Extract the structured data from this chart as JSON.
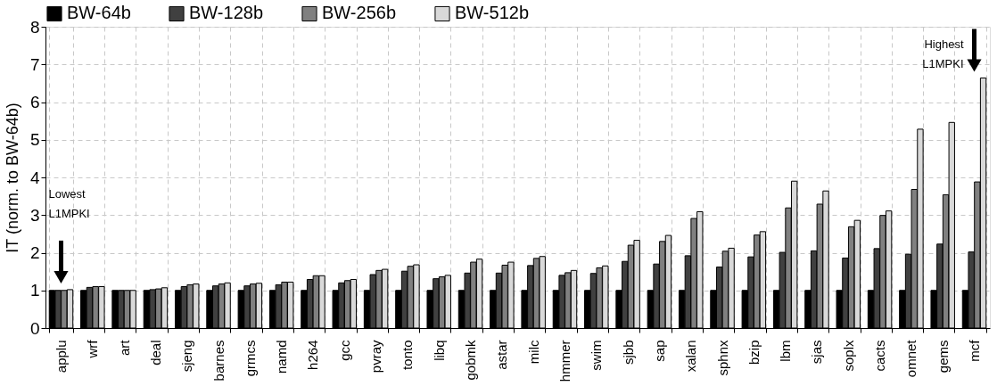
{
  "chart_data": {
    "type": "bar",
    "ylabel": "IT  (norm. to BW-64b)",
    "categories": [
      "applu",
      "wrf",
      "art",
      "deal",
      "sjeng",
      "barnes",
      "grmcs",
      "namd",
      "h264",
      "gcc",
      "pvray",
      "tonto",
      "libq",
      "gobmk",
      "astar",
      "milc",
      "hmmer",
      "swim",
      "sjbb",
      "sap",
      "xalan",
      "sphnx",
      "bzip",
      "lbm",
      "sjas",
      "soplx",
      "cacts",
      "omnet",
      "gems",
      "mcf"
    ],
    "series": [
      {
        "name": "BW-64b",
        "color": "#000000",
        "values": [
          1,
          1,
          1,
          1,
          1,
          1,
          1,
          1,
          1,
          1,
          1,
          1,
          1,
          1,
          1,
          1,
          1,
          1,
          1,
          1,
          1,
          1,
          1,
          1,
          1,
          1,
          1,
          1,
          1,
          1
        ]
      },
      {
        "name": "BW-128b",
        "color": "#404040",
        "values": [
          1.0,
          1.08,
          1.0,
          1.02,
          1.1,
          1.12,
          1.12,
          1.15,
          1.29,
          1.2,
          1.42,
          1.51,
          1.31,
          1.46,
          1.46,
          1.66,
          1.4,
          1.45,
          1.77,
          1.7,
          1.92,
          1.62,
          1.89,
          2.01,
          2.05,
          1.86,
          2.11,
          1.96,
          2.23,
          2.02
        ]
      },
      {
        "name": "BW-256b",
        "color": "#808080",
        "values": [
          1.0,
          1.1,
          1.0,
          1.04,
          1.15,
          1.17,
          1.17,
          1.22,
          1.39,
          1.26,
          1.53,
          1.64,
          1.36,
          1.75,
          1.67,
          1.85,
          1.47,
          1.6,
          2.2,
          2.3,
          2.91,
          2.04,
          2.47,
          3.19,
          3.29,
          2.69,
          2.99,
          3.68,
          3.54,
          3.88
        ]
      },
      {
        "name": "BW-512b",
        "color": "#d9d9d9",
        "values": [
          1.02,
          1.1,
          1.0,
          1.07,
          1.17,
          1.2,
          1.19,
          1.22,
          1.39,
          1.29,
          1.56,
          1.68,
          1.4,
          1.83,
          1.75,
          1.9,
          1.53,
          1.65,
          2.33,
          2.46,
          3.09,
          2.12,
          2.56,
          3.9,
          3.64,
          2.86,
          3.11,
          5.28,
          5.46,
          6.64
        ]
      }
    ],
    "ylim": [
      0,
      8
    ],
    "yticks": [
      0,
      1,
      2,
      3,
      4,
      5,
      6,
      7,
      8
    ],
    "grid": true,
    "legend": "top",
    "annotations": [
      "Lowest L1MPKI",
      "Highest L1MPKI"
    ]
  }
}
